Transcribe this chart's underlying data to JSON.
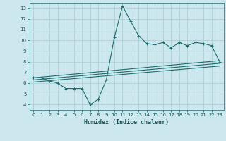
{
  "xlabel": "Humidex (Indice chaleur)",
  "bg_color": "#cce8ee",
  "grid_color": "#b0cfd6",
  "line_color": "#1a6b6b",
  "x_ticks": [
    0,
    1,
    2,
    3,
    4,
    5,
    6,
    7,
    8,
    9,
    10,
    11,
    12,
    13,
    14,
    15,
    16,
    17,
    18,
    19,
    20,
    21,
    22,
    23
  ],
  "y_ticks": [
    4,
    5,
    6,
    7,
    8,
    9,
    10,
    11,
    12,
    13
  ],
  "ylim": [
    3.5,
    13.5
  ],
  "xlim": [
    -0.5,
    23.5
  ],
  "main_line_x": [
    0,
    1,
    2,
    3,
    4,
    5,
    6,
    7,
    8,
    9,
    10,
    11,
    12,
    13,
    14,
    15,
    16,
    17,
    18,
    19,
    20,
    21,
    22,
    23
  ],
  "main_line_y": [
    6.5,
    6.5,
    6.2,
    6.0,
    5.5,
    5.5,
    5.5,
    4.0,
    4.5,
    6.3,
    10.3,
    13.2,
    11.8,
    10.4,
    9.7,
    9.6,
    9.8,
    9.3,
    9.8,
    9.5,
    9.8,
    9.7,
    9.5,
    8.0
  ],
  "upper_line_x": [
    0,
    23
  ],
  "upper_line_y": [
    6.5,
    8.1
  ],
  "mid_line_x": [
    0,
    23
  ],
  "mid_line_y": [
    6.3,
    7.85
  ],
  "lower_line_x": [
    0,
    23
  ],
  "lower_line_y": [
    6.1,
    7.6
  ],
  "xlabel_fontsize": 6.0,
  "tick_fontsize": 5.0
}
